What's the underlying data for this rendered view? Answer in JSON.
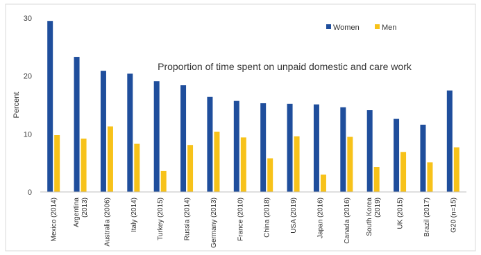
{
  "chart_data": {
    "type": "bar",
    "title": "Proportion of time spent on unpaid domestic and care work",
    "xlabel": "",
    "ylabel": "Percent",
    "ylim": [
      0,
      30
    ],
    "yticks": [
      0,
      10,
      20,
      30
    ],
    "grid": false,
    "legend_position": "top-right",
    "categories": [
      [
        "Mexico (2014)"
      ],
      [
        "Argentina",
        "(2013)"
      ],
      [
        "Australia (2006)"
      ],
      [
        "Italy (2014)"
      ],
      [
        "Turkey (2015)"
      ],
      [
        "Russia (2014)"
      ],
      [
        "Germany (2013)"
      ],
      [
        "France (2010)"
      ],
      [
        "China (2018)"
      ],
      [
        "USA (2019)"
      ],
      [
        "Japan (2016)"
      ],
      [
        "Canada (2016)"
      ],
      [
        "South Korea",
        "(2019)"
      ],
      [
        "UK (2015)"
      ],
      [
        "Brazil (2017)"
      ],
      [
        "G20 (n=15)"
      ]
    ],
    "series": [
      {
        "name": "Women",
        "color": "#1f4e9c",
        "values": [
          29.5,
          23.3,
          20.9,
          20.4,
          19.1,
          18.4,
          16.4,
          15.7,
          15.3,
          15.2,
          15.1,
          14.6,
          14.1,
          12.6,
          11.6,
          17.5
        ]
      },
      {
        "name": "Men",
        "color": "#f7c21a",
        "values": [
          9.8,
          9.2,
          11.3,
          8.3,
          3.6,
          8.1,
          10.4,
          9.4,
          5.8,
          9.6,
          3.0,
          9.5,
          4.3,
          6.9,
          5.1,
          7.7
        ]
      }
    ]
  }
}
